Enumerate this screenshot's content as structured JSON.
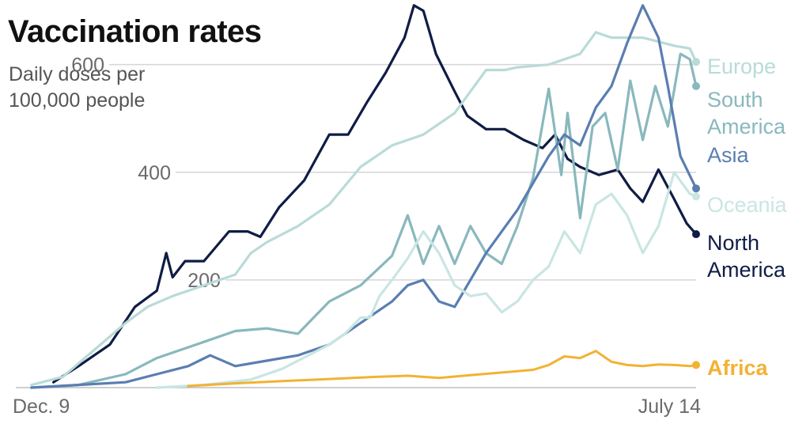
{
  "title": "Vaccination rates",
  "subtitle_line1": "Daily doses per",
  "subtitle_line2": "100,000 people",
  "chart_data": {
    "type": "line",
    "title": "Vaccination rates",
    "ylabel": "Daily doses per 100,000 people",
    "ylim": [
      0,
      720
    ],
    "yticks": [
      200,
      400,
      600
    ],
    "ytick_labels": [
      "200",
      "400",
      "600"
    ],
    "x_range": [
      0,
      217
    ],
    "x_tick_labels": [
      {
        "label": "Dec. 9",
        "x": 0
      },
      {
        "label": "July 14",
        "x": 217
      }
    ],
    "series": [
      {
        "name": "North America",
        "color": "#0f1c45",
        "label_lines": [
          "North",
          "America"
        ],
        "x": [
          12,
          20,
          30,
          38,
          45,
          48,
          50,
          54,
          60,
          68,
          74,
          78,
          84,
          92,
          100,
          106,
          112,
          118,
          124,
          127,
          130,
          134,
          140,
          144,
          150,
          156,
          162,
          168,
          172,
          176,
          180,
          186,
          192,
          196,
          200,
          205,
          210,
          214,
          217
        ],
        "y": [
          10,
          40,
          80,
          150,
          180,
          250,
          205,
          235,
          235,
          290,
          290,
          280,
          335,
          385,
          470,
          470,
          530,
          585,
          650,
          710,
          700,
          620,
          550,
          505,
          480,
          480,
          460,
          445,
          470,
          425,
          410,
          395,
          405,
          370,
          345,
          405,
          350,
          305,
          285
        ]
      },
      {
        "name": "Europe",
        "color": "#b9dbd8",
        "label_lines": [
          "Europe"
        ],
        "x": [
          5,
          15,
          25,
          35,
          42,
          50,
          60,
          70,
          75,
          80,
          90,
          100,
          110,
          120,
          130,
          140,
          150,
          156,
          160,
          170,
          180,
          185,
          190,
          200,
          210,
          215,
          217
        ],
        "y": [
          5,
          20,
          70,
          120,
          150,
          170,
          190,
          210,
          250,
          270,
          300,
          340,
          410,
          450,
          470,
          510,
          590,
          590,
          595,
          600,
          620,
          660,
          650,
          650,
          635,
          630,
          605
        ]
      },
      {
        "name": "South America",
        "color": "#89b8bd",
        "label_lines": [
          "South",
          "America"
        ],
        "x": [
          5,
          20,
          35,
          45,
          60,
          70,
          80,
          90,
          100,
          110,
          120,
          125,
          130,
          135,
          140,
          145,
          150,
          155,
          160,
          165,
          170,
          174,
          176,
          180,
          184,
          188,
          192,
          196,
          200,
          204,
          208,
          212,
          215,
          217
        ],
        "y": [
          0,
          5,
          25,
          55,
          85,
          105,
          110,
          100,
          160,
          190,
          245,
          320,
          230,
          300,
          230,
          300,
          250,
          230,
          300,
          390,
          555,
          395,
          510,
          315,
          485,
          510,
          405,
          570,
          460,
          560,
          485,
          620,
          610,
          560
        ]
      },
      {
        "name": "Asia",
        "color": "#5a7eb0",
        "label_lines": [
          "Asia"
        ],
        "x": [
          5,
          20,
          35,
          45,
          55,
          62,
          70,
          80,
          90,
          100,
          110,
          120,
          125,
          130,
          135,
          140,
          145,
          150,
          155,
          160,
          165,
          170,
          175,
          180,
          185,
          190,
          195,
          200,
          205,
          208,
          212,
          217
        ],
        "y": [
          0,
          5,
          10,
          25,
          40,
          60,
          40,
          50,
          60,
          80,
          120,
          160,
          190,
          200,
          160,
          150,
          200,
          250,
          290,
          330,
          380,
          430,
          470,
          450,
          520,
          560,
          640,
          710,
          650,
          560,
          430,
          370
        ]
      },
      {
        "name": "Oceania",
        "color": "#c9e6e2",
        "label_lines": [
          "Oceania"
        ],
        "x": [
          45,
          60,
          75,
          85,
          90,
          95,
          100,
          105,
          110,
          113,
          116,
          120,
          125,
          130,
          135,
          140,
          145,
          150,
          155,
          160,
          165,
          170,
          175,
          180,
          185,
          190,
          195,
          200,
          205,
          210,
          215,
          217
        ],
        "y": [
          0,
          5,
          15,
          35,
          50,
          65,
          80,
          100,
          130,
          130,
          170,
          200,
          240,
          290,
          250,
          190,
          170,
          175,
          140,
          160,
          200,
          225,
          290,
          250,
          340,
          360,
          320,
          250,
          300,
          400,
          360,
          355
        ]
      },
      {
        "name": "Africa",
        "color": "#f2b233",
        "label_lines": [
          "Africa"
        ],
        "x": [
          55,
          70,
          85,
          100,
          115,
          125,
          135,
          145,
          155,
          165,
          170,
          175,
          180,
          185,
          190,
          195,
          200,
          205,
          210,
          215,
          217
        ],
        "y": [
          3,
          8,
          12,
          16,
          20,
          22,
          18,
          23,
          28,
          33,
          42,
          58,
          55,
          68,
          48,
          42,
          40,
          43,
          42,
          40,
          42
        ]
      }
    ]
  }
}
